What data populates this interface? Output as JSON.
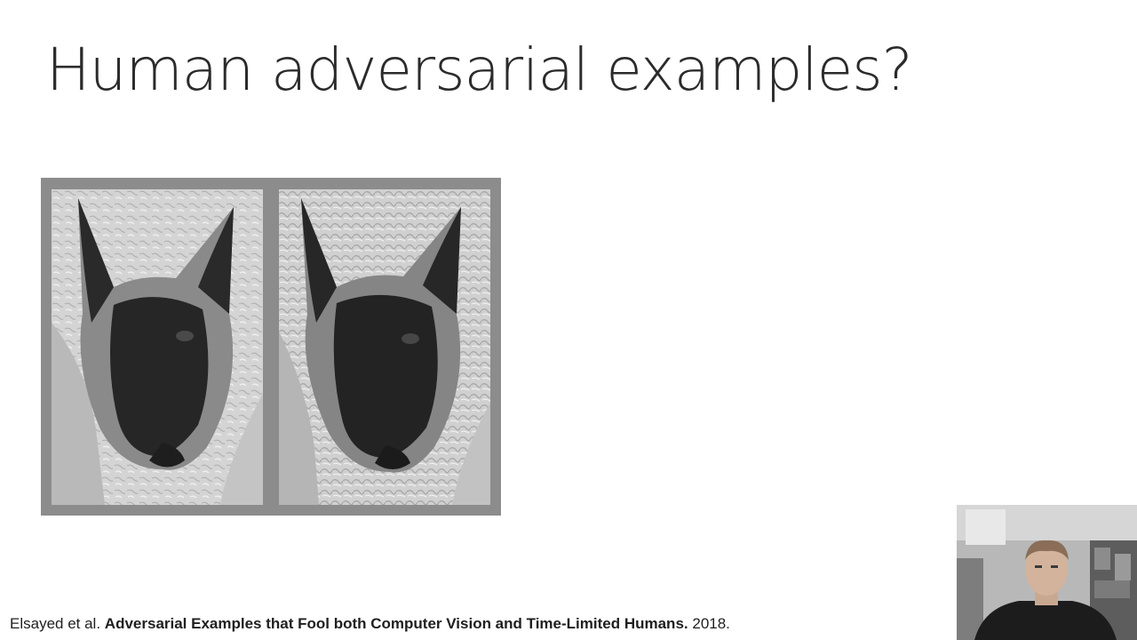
{
  "slide": {
    "title": "Human adversarial examples?"
  },
  "figure": {
    "panels": [
      {
        "subject": "siamese-cat-original"
      },
      {
        "subject": "siamese-cat-perturbed"
      }
    ],
    "colors": {
      "frame": "#8c8c8c",
      "background": "#d9d9d9",
      "fur_dark": "#2a2a2a"
    }
  },
  "citation": {
    "authors": "Elsayed et al.",
    "paper_title": "Adversarial Examples that Fool both Computer Vision and Time-Limited Humans.",
    "year": "2018."
  },
  "webcam": {
    "subject": "presenter-video"
  }
}
